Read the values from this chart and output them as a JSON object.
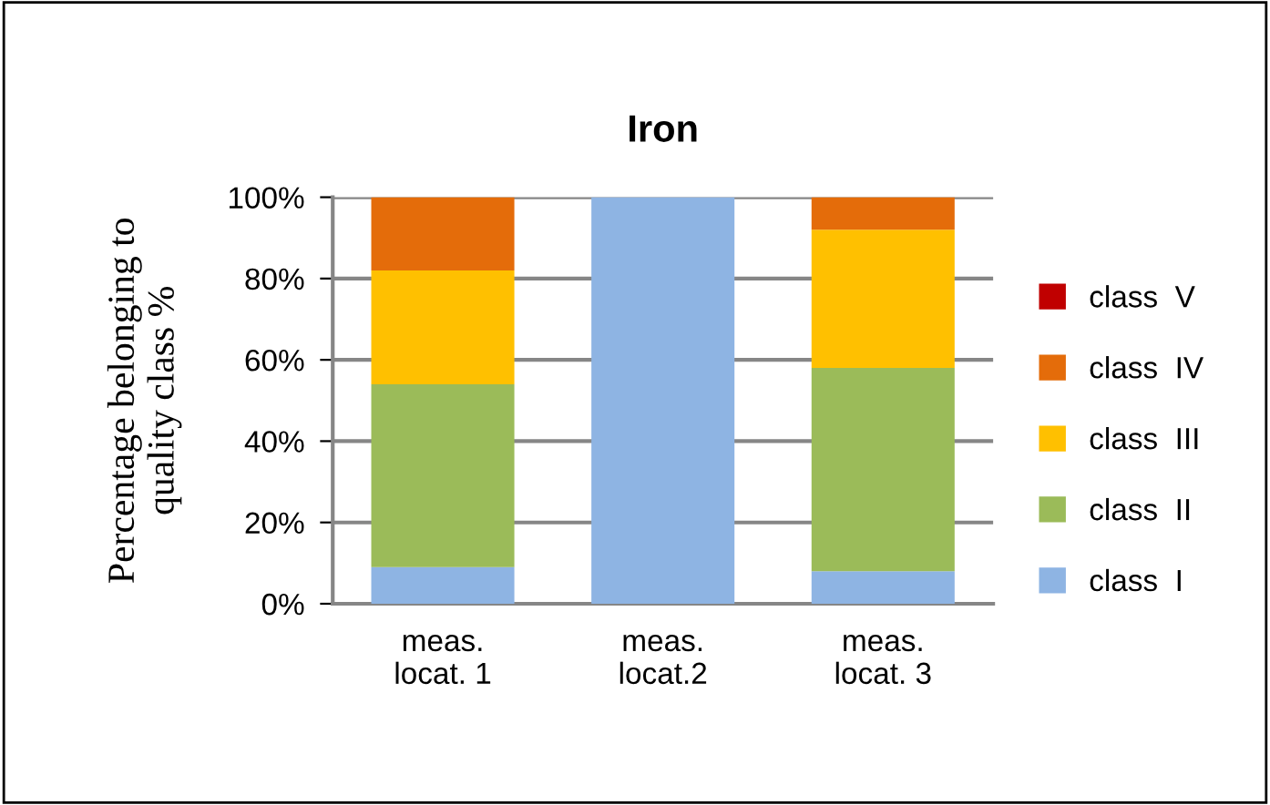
{
  "chart_data": {
    "type": "bar",
    "title": "Iron",
    "ylabel": "Percentage belonging to\nquality class %",
    "categories": [
      "meas.\nlocat. 1",
      "meas.\nlocat.2",
      "meas.\nlocat. 3"
    ],
    "stacked": true,
    "series": [
      {
        "name": "class  I",
        "color": "#8eb4e3",
        "values": [
          9,
          100,
          8
        ]
      },
      {
        "name": "class  II",
        "color": "#9bbb59",
        "values": [
          45,
          0,
          50
        ]
      },
      {
        "name": "class  III",
        "color": "#ffc000",
        "values": [
          28,
          0,
          34
        ]
      },
      {
        "name": "class  IV",
        "color": "#e46c0a",
        "values": [
          18,
          0,
          8
        ]
      },
      {
        "name": "class  V",
        "color": "#c00000",
        "values": [
          0,
          0,
          0
        ]
      }
    ],
    "ylim": [
      0,
      100
    ],
    "yticks": [
      {
        "value": 0,
        "label": "0%"
      },
      {
        "value": 20,
        "label": "20%"
      },
      {
        "value": 40,
        "label": "40%"
      },
      {
        "value": 60,
        "label": "60%"
      },
      {
        "value": 80,
        "label": "80%"
      },
      {
        "value": 100,
        "label": "100%"
      }
    ],
    "grid": "y",
    "legend": "right"
  }
}
